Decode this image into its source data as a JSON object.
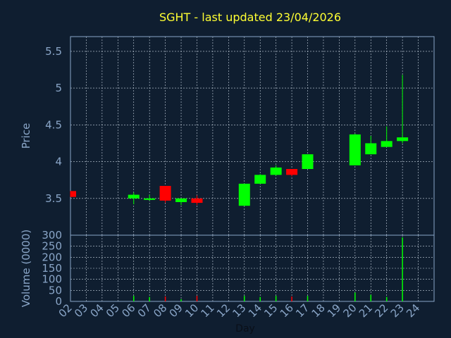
{
  "title": "SGHT - last updated 23/04/2026",
  "colors": {
    "background": "#0f1e30",
    "title": "#ffff33",
    "axis_text": "#8aa6c8",
    "frame": "#8aa6c8",
    "grid": "#c8d4e0",
    "up": "#00ff00",
    "down": "#ff0000"
  },
  "chart_data": [
    {
      "type": "candlestick",
      "ylabel": "Price",
      "ylim": [
        3.0,
        5.7
      ],
      "yticks": [
        "3.5",
        "4",
        "4.5",
        "5",
        "5.5"
      ],
      "grid": true,
      "x": [
        "02",
        "03",
        "04",
        "05",
        "06",
        "07",
        "08",
        "09",
        "10",
        "11",
        "12",
        "13",
        "14",
        "15",
        "16",
        "17",
        "18",
        "19",
        "20",
        "21",
        "22",
        "23",
        "24"
      ],
      "ohlc": [
        {
          "day": "02",
          "open": 3.6,
          "high": 3.6,
          "low": 3.52,
          "close": 3.52
        },
        {
          "day": "06",
          "open": 3.5,
          "high": 3.58,
          "low": 3.42,
          "close": 3.55
        },
        {
          "day": "07",
          "open": 3.48,
          "high": 3.55,
          "low": 3.47,
          "close": 3.5
        },
        {
          "day": "08",
          "open": 3.67,
          "high": 3.67,
          "low": 3.44,
          "close": 3.47
        },
        {
          "day": "09",
          "open": 3.45,
          "high": 3.5,
          "low": 3.41,
          "close": 3.5
        },
        {
          "day": "10",
          "open": 3.5,
          "high": 3.54,
          "low": 3.41,
          "close": 3.44
        },
        {
          "day": "13",
          "open": 3.4,
          "high": 3.7,
          "low": 3.4,
          "close": 3.7
        },
        {
          "day": "14",
          "open": 3.7,
          "high": 3.83,
          "low": 3.7,
          "close": 3.82
        },
        {
          "day": "15",
          "open": 3.82,
          "high": 3.95,
          "low": 3.81,
          "close": 3.92
        },
        {
          "day": "16",
          "open": 3.9,
          "high": 3.9,
          "low": 3.8,
          "close": 3.82
        },
        {
          "day": "17",
          "open": 3.9,
          "high": 4.1,
          "low": 3.9,
          "close": 4.1
        },
        {
          "day": "20",
          "open": 3.95,
          "high": 4.38,
          "low": 3.95,
          "close": 4.37
        },
        {
          "day": "21",
          "open": 4.1,
          "high": 4.35,
          "low": 4.1,
          "close": 4.25
        },
        {
          "day": "22",
          "open": 4.2,
          "high": 4.48,
          "low": 4.2,
          "close": 4.28
        },
        {
          "day": "23",
          "open": 4.28,
          "high": 5.18,
          "low": 4.25,
          "close": 4.33
        }
      ]
    },
    {
      "type": "bar",
      "ylabel": "Volume (0000)",
      "xlabel": "Day",
      "ylim": [
        0,
        300
      ],
      "yticks": [
        "0",
        "50",
        "100",
        "150",
        "200",
        "250",
        "300"
      ],
      "grid": true,
      "x": [
        "02",
        "03",
        "04",
        "05",
        "06",
        "07",
        "08",
        "09",
        "10",
        "11",
        "12",
        "13",
        "14",
        "15",
        "16",
        "17",
        "18",
        "19",
        "20",
        "21",
        "22",
        "23",
        "24"
      ],
      "bars": [
        {
          "day": "06",
          "value": 25,
          "direction": "up"
        },
        {
          "day": "07",
          "value": 20,
          "direction": "up"
        },
        {
          "day": "08",
          "value": 22,
          "direction": "down"
        },
        {
          "day": "09",
          "value": 10,
          "direction": "up"
        },
        {
          "day": "10",
          "value": 25,
          "direction": "down"
        },
        {
          "day": "13",
          "value": 25,
          "direction": "up"
        },
        {
          "day": "14",
          "value": 20,
          "direction": "up"
        },
        {
          "day": "15",
          "value": 25,
          "direction": "up"
        },
        {
          "day": "16",
          "value": 22,
          "direction": "down"
        },
        {
          "day": "17",
          "value": 25,
          "direction": "up"
        },
        {
          "day": "20",
          "value": 40,
          "direction": "up"
        },
        {
          "day": "21",
          "value": 30,
          "direction": "up"
        },
        {
          "day": "22",
          "value": 20,
          "direction": "up"
        },
        {
          "day": "23",
          "value": 290,
          "direction": "up"
        }
      ]
    }
  ]
}
